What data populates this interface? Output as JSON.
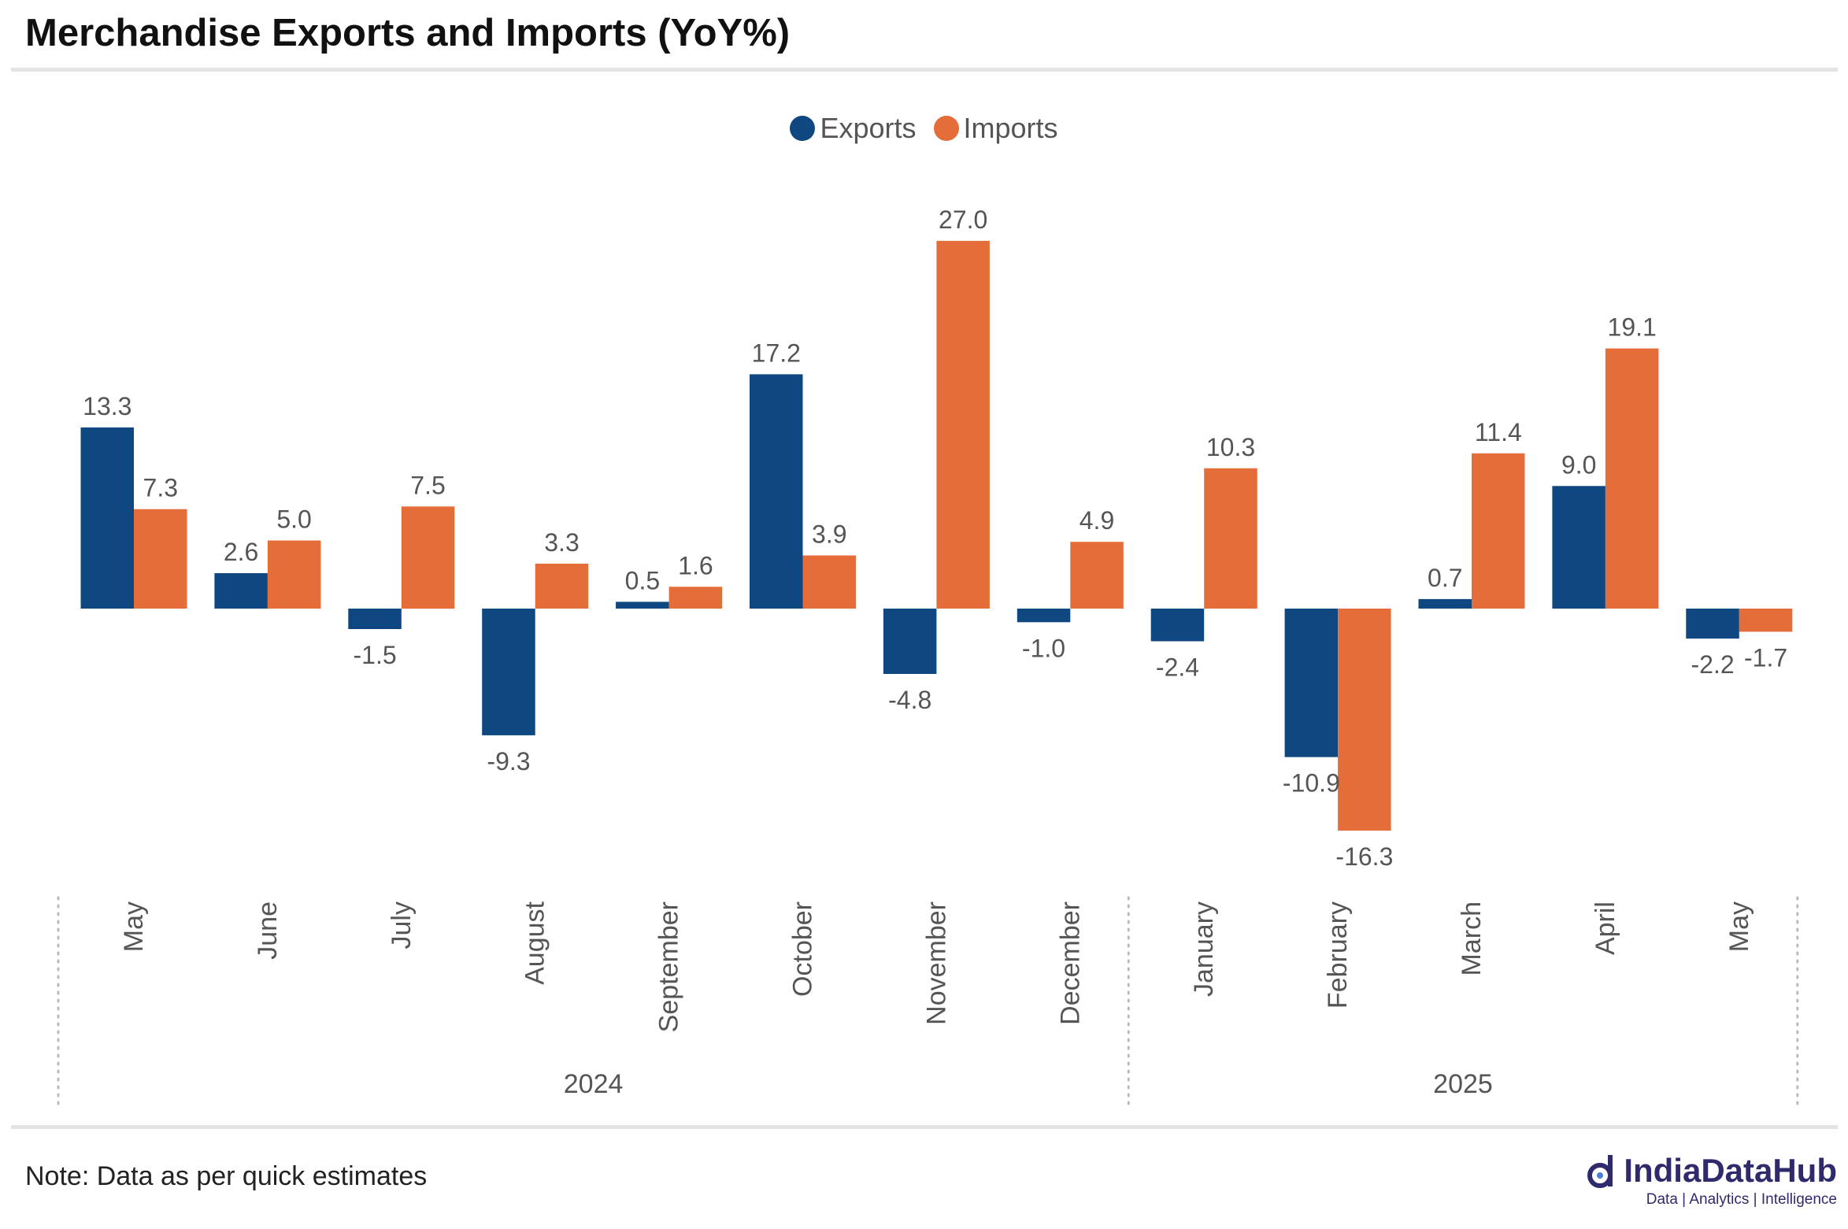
{
  "header": {
    "title": "Merchandise Exports and Imports (YoY%)"
  },
  "legend": {
    "items": [
      {
        "label": "Exports",
        "color": "#0f4780"
      },
      {
        "label": "Imports",
        "color": "#e56d3a"
      }
    ]
  },
  "footer": {
    "note": "Note: Data as per quick estimates",
    "brand_name": "IndiaDataHub",
    "brand_tagline": "Data | Analytics | Intelligence",
    "brand_icon": "indiadatahub-logo-icon"
  },
  "chart_data": {
    "type": "bar",
    "categories": [
      "May",
      "June",
      "July",
      "August",
      "September",
      "October",
      "November",
      "December",
      "January",
      "February",
      "March",
      "April",
      "May"
    ],
    "groups": [
      {
        "label": "2024",
        "count": 8
      },
      {
        "label": "2025",
        "count": 5
      }
    ],
    "series": [
      {
        "name": "Exports",
        "color": "#0f4780",
        "values": [
          13.3,
          2.6,
          -1.5,
          -9.3,
          0.5,
          17.2,
          -4.8,
          -1.0,
          -2.4,
          -10.9,
          0.7,
          9.0,
          -2.2
        ]
      },
      {
        "name": "Imports",
        "color": "#e56d3a",
        "values": [
          7.3,
          5.0,
          7.5,
          3.3,
          1.6,
          3.9,
          27.0,
          4.9,
          10.3,
          -16.3,
          11.4,
          19.1,
          -1.7
        ]
      }
    ],
    "ylim": [
      -16.3,
      27.0
    ],
    "grid": false,
    "legend_position": "top-center",
    "data_labels": true
  }
}
